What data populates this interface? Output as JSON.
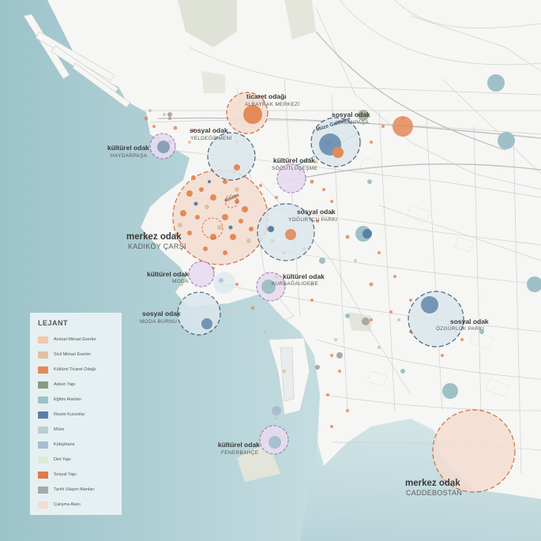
{
  "map": {
    "colors": {
      "sea": "#b9d5d9",
      "land": "#f6f6f4",
      "roads": "#c9c9c9",
      "park": "#dfe2d6",
      "ring_commerce": "#c65a2a",
      "ring_social": "#2f4a66",
      "ring_culture": "#9b72b4"
    },
    "labels": [
      {
        "type": "ticaret odağı",
        "name": "ALBAYRAK MERKEZİ"
      },
      {
        "type": "sosyal odak",
        "name": "HASANPAŞA"
      },
      {
        "type": "sosyal odak",
        "name": "YELDEĞİRMENİ"
      },
      {
        "type": "kültürel odak",
        "name": "HAYDARPAŞA"
      },
      {
        "type": "kültürel odak",
        "name": "SÖĞÜTLÜÇEŞME"
      },
      {
        "type": "sosyal odak",
        "name": "YOĞURTÇU PARKI"
      },
      {
        "type": "merkez odak",
        "name": "KADIKÖY ÇARŞI"
      },
      {
        "type": "kültürel odak",
        "name": "MODA"
      },
      {
        "type": "kültürel odak",
        "name": "KURBAĞALIDERE"
      },
      {
        "type": "sosyal odak",
        "name": "MODA BURNU"
      },
      {
        "type": "sosyal odak",
        "name": "ÖZGÜRLÜK PARKI"
      },
      {
        "type": "kültürel odak",
        "name": "FENERBAHÇE"
      },
      {
        "type": "merkez odak",
        "name": "CADDEBOSTAN"
      }
    ],
    "inner_labels": [
      "Müze Gazhane",
      "Rıhtım"
    ]
  },
  "legend": {
    "title": "LEJANT",
    "items": [
      {
        "label": "Anıtsal Mimari Eserler",
        "color": "#f2c7ae"
      },
      {
        "label": "Sivil Mimari Eserler",
        "color": "#e0c19e"
      },
      {
        "label": "Kültürel Ticaret Odağı",
        "color": "#e48a58"
      },
      {
        "label": "Askeri Yapı",
        "color": "#8a9a7c"
      },
      {
        "label": "Eğitim Alanları",
        "color": "#9ec0c6"
      },
      {
        "label": "Resmi Kurumlar",
        "color": "#5a7fa8"
      },
      {
        "label": "Müze",
        "color": "#b9cdd3"
      },
      {
        "label": "Kütüphane",
        "color": "#a9bfd1"
      },
      {
        "label": "Dini Yapı",
        "color": "#dcebd2"
      },
      {
        "label": "Sosyal Yapı",
        "color": "#e07a4a"
      },
      {
        "label": "Tarihi Ulaşım Alanları",
        "color": "#a9a9a9"
      },
      {
        "label": "Çalışma Alanı",
        "color": "#f4ddd0"
      }
    ]
  }
}
